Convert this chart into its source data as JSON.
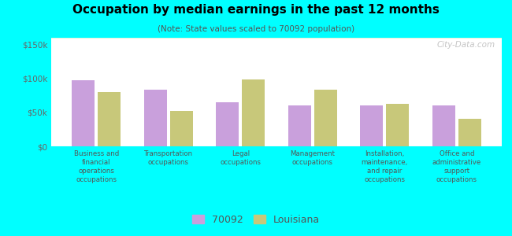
{
  "title": "Occupation by median earnings in the past 12 months",
  "subtitle": "(Note: State values scaled to 70092 population)",
  "categories": [
    "Business and\nfinancial\noperations\noccupations",
    "Transportation\noccupations",
    "Legal\noccupations",
    "Management\noccupations",
    "Installation,\nmaintenance,\nand repair\noccupations",
    "Office and\nadministrative\nsupport\noccupations"
  ],
  "values_70092": [
    97000,
    83000,
    65000,
    60000,
    60000,
    60000
  ],
  "values_louisiana": [
    80000,
    52000,
    98000,
    83000,
    63000,
    41000
  ],
  "color_70092": "#c9a0dc",
  "color_louisiana": "#c8c87a",
  "background_color": "#00ffff",
  "ylim": [
    0,
    160000
  ],
  "yticks": [
    0,
    50000,
    100000,
    150000
  ],
  "ytick_labels": [
    "$0",
    "$50k",
    "$100k",
    "$150k"
  ],
  "legend_label_70092": "70092",
  "legend_label_louisiana": "Louisiana",
  "watermark": "City-Data.com",
  "bar_width": 0.32,
  "bar_gap": 0.04
}
